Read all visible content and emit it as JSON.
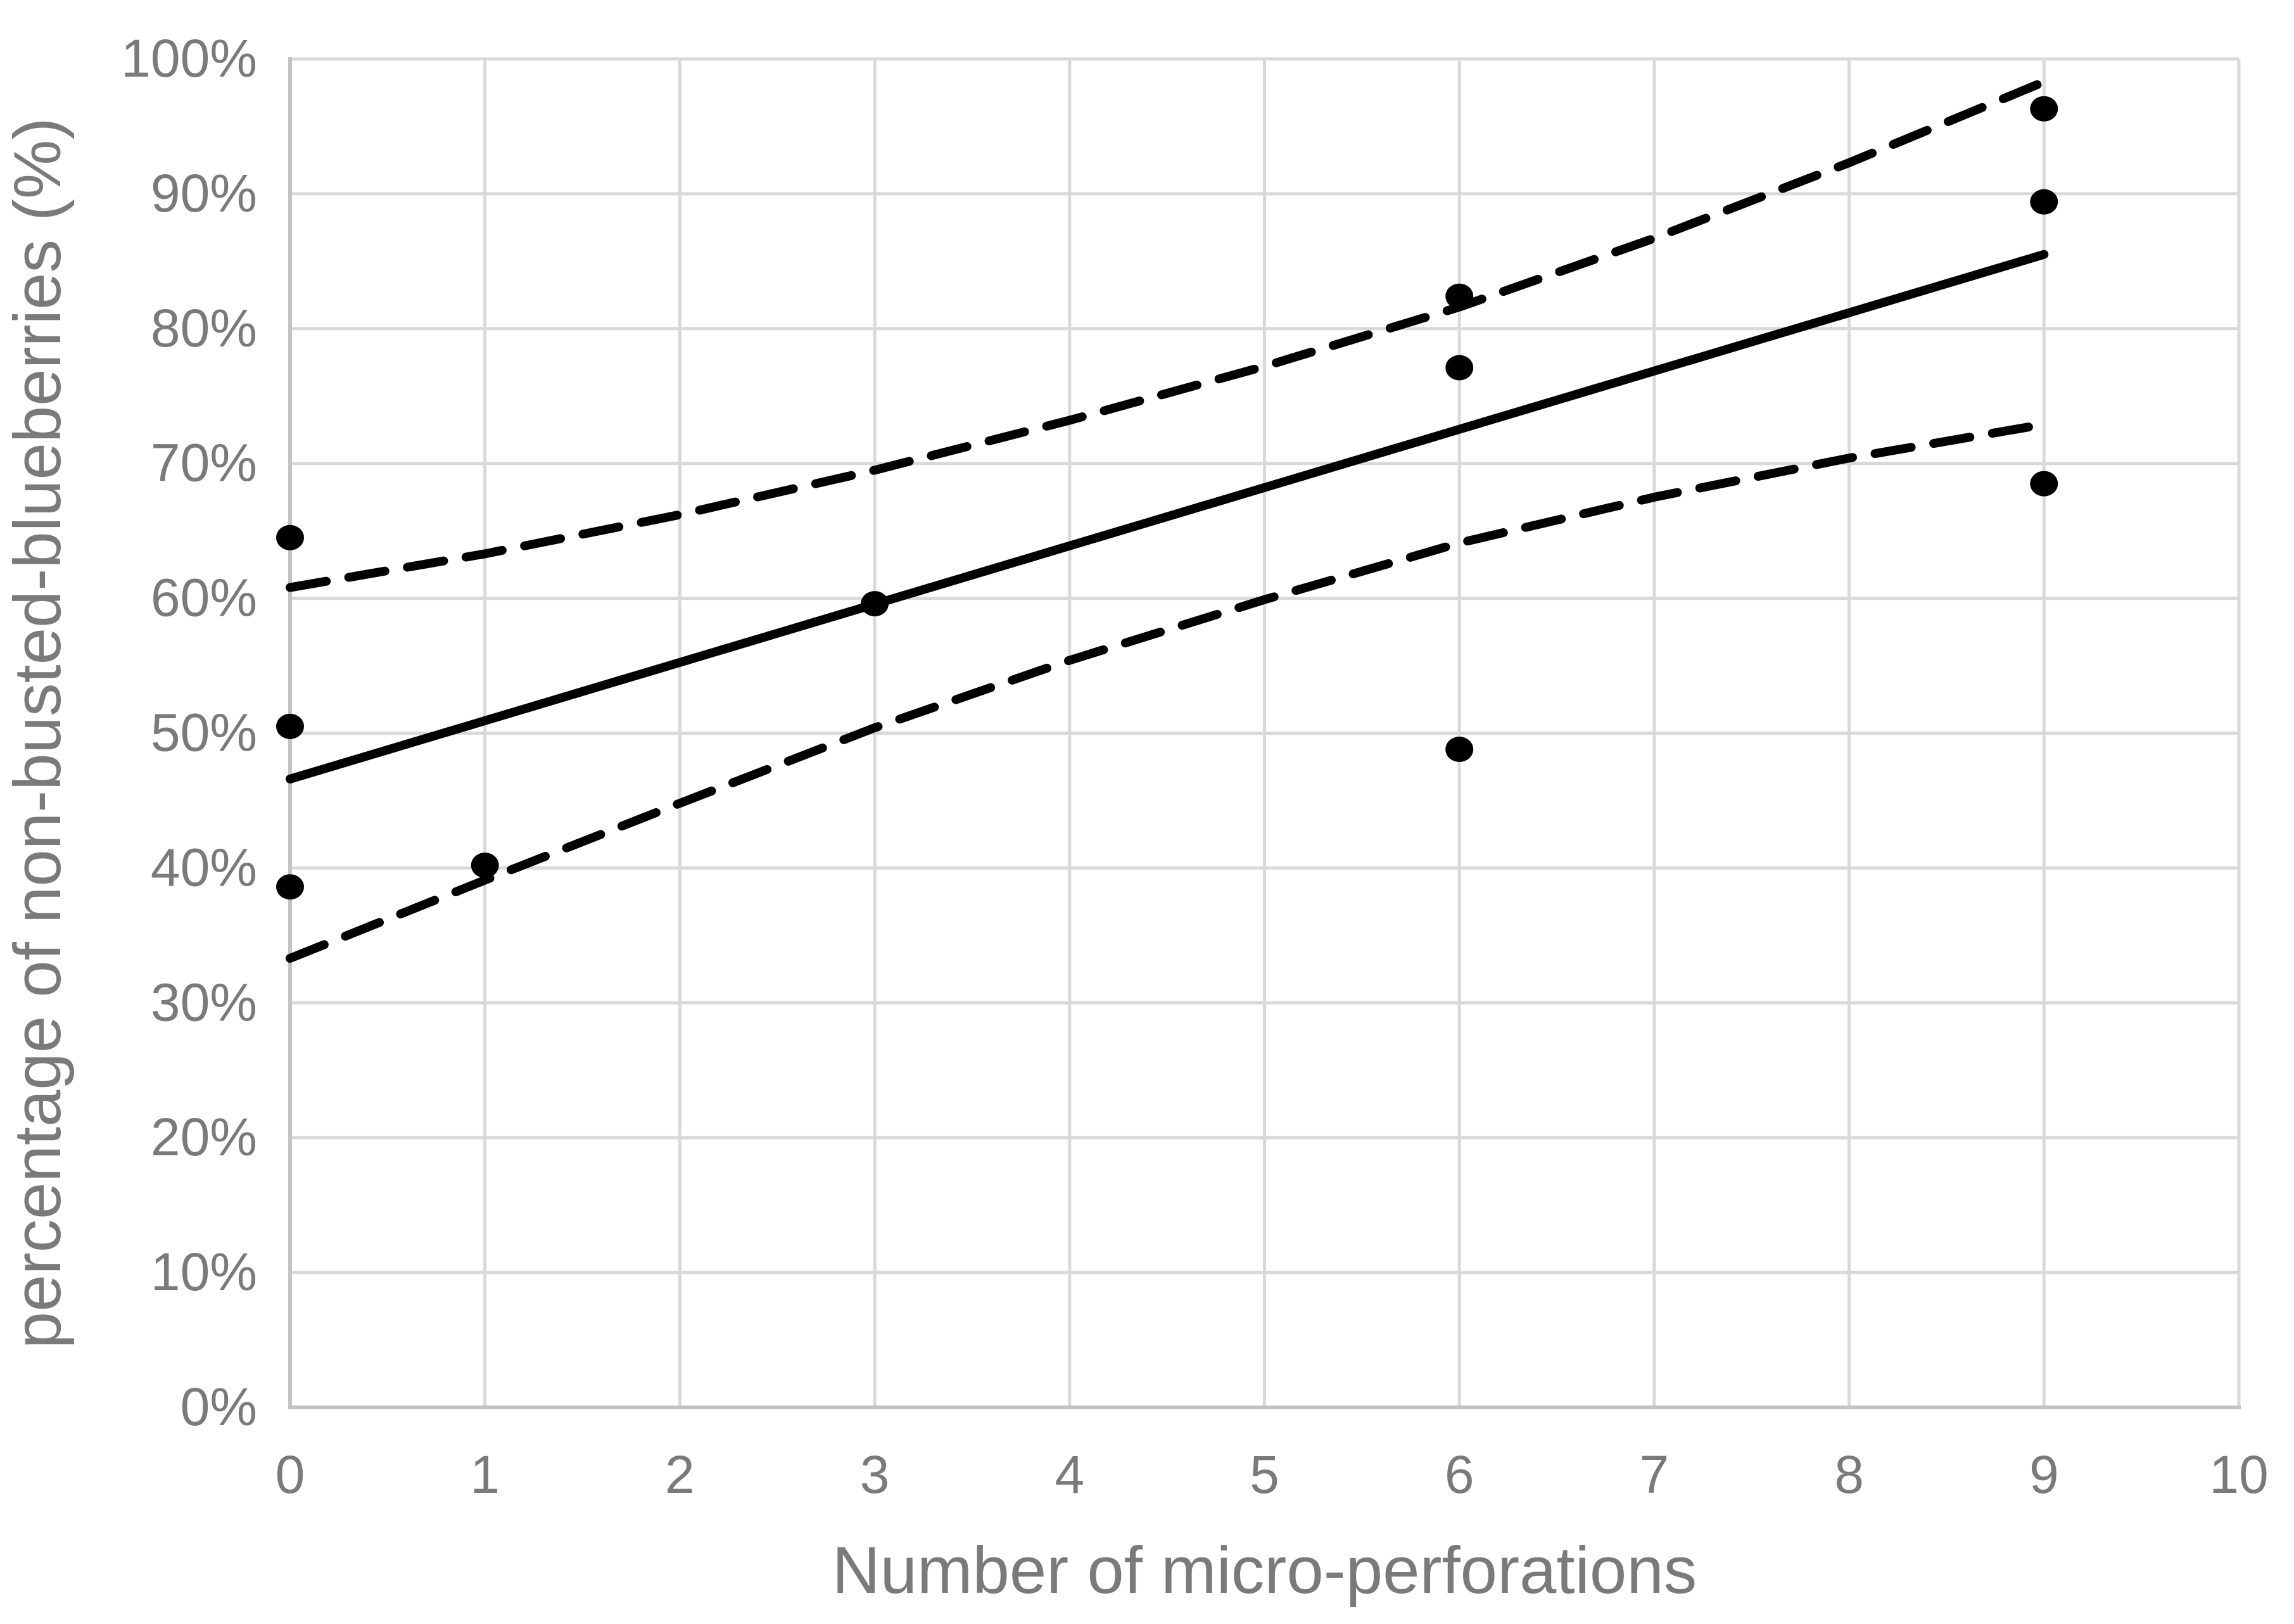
{
  "chart_data": {
    "type": "scatter",
    "title": "",
    "xlabel": "Number of micro-perforations",
    "ylabel": "percentage of non-busted-blueberries (%)",
    "xlim": [
      0,
      10
    ],
    "ylim": [
      0,
      100
    ],
    "grid": true,
    "legend": "none",
    "x_ticks": [
      {
        "v": 0,
        "label": "0"
      },
      {
        "v": 1,
        "label": "1"
      },
      {
        "v": 2,
        "label": "2"
      },
      {
        "v": 3,
        "label": "3"
      },
      {
        "v": 4,
        "label": "4"
      },
      {
        "v": 5,
        "label": "5"
      },
      {
        "v": 6,
        "label": "6"
      },
      {
        "v": 7,
        "label": "7"
      },
      {
        "v": 8,
        "label": "8"
      },
      {
        "v": 9,
        "label": "9"
      },
      {
        "v": 10,
        "label": "10"
      }
    ],
    "y_ticks": [
      {
        "v": 0,
        "label": "0%"
      },
      {
        "v": 10,
        "label": "10%"
      },
      {
        "v": 20,
        "label": "20%"
      },
      {
        "v": 30,
        "label": "30%"
      },
      {
        "v": 40,
        "label": "40%"
      },
      {
        "v": 50,
        "label": "50%"
      },
      {
        "v": 60,
        "label": "60%"
      },
      {
        "v": 70,
        "label": "70%"
      },
      {
        "v": 80,
        "label": "80%"
      },
      {
        "v": 90,
        "label": "90%"
      },
      {
        "v": 100,
        "label": "100%"
      }
    ],
    "scatter_points": [
      {
        "x": 0,
        "y": 64.5
      },
      {
        "x": 0,
        "y": 50.5
      },
      {
        "x": 0,
        "y": 38.6
      },
      {
        "x": 1,
        "y": 40.2
      },
      {
        "x": 3,
        "y": 59.6
      },
      {
        "x": 6,
        "y": 82.4
      },
      {
        "x": 6,
        "y": 77.1
      },
      {
        "x": 6,
        "y": 48.8
      },
      {
        "x": 9,
        "y": 96.3
      },
      {
        "x": 9,
        "y": 89.4
      },
      {
        "x": 9,
        "y": 68.5
      }
    ],
    "series": [
      {
        "name": "regression-line",
        "style": "solid",
        "points": [
          [
            0,
            46.6
          ],
          [
            9,
            85.5
          ]
        ]
      },
      {
        "name": "upper-confidence-band",
        "style": "dashed",
        "points": [
          [
            0,
            60.8
          ],
          [
            1,
            63.3
          ],
          [
            2,
            66.2
          ],
          [
            3,
            69.5
          ],
          [
            4,
            73.2
          ],
          [
            5,
            77.2
          ],
          [
            6,
            81.6
          ],
          [
            7,
            86.7
          ],
          [
            8,
            92.3
          ],
          [
            9,
            98.3
          ]
        ]
      },
      {
        "name": "lower-confidence-band",
        "style": "dashed",
        "points": [
          [
            0,
            33.3
          ],
          [
            1,
            39.1
          ],
          [
            2,
            44.8
          ],
          [
            3,
            50.4
          ],
          [
            4,
            55.4
          ],
          [
            5,
            59.9
          ],
          [
            6,
            64.1
          ],
          [
            7,
            67.5
          ],
          [
            8,
            70.4
          ],
          [
            9,
            72.9
          ]
        ]
      }
    ]
  },
  "colors": {
    "background": "#ffffff",
    "gridline": "#d9d9d9",
    "axis_line": "#c3c3c3",
    "tick_text": "#7a7a7a",
    "axis_title_text": "#7a7a7a",
    "data": "#000000"
  }
}
